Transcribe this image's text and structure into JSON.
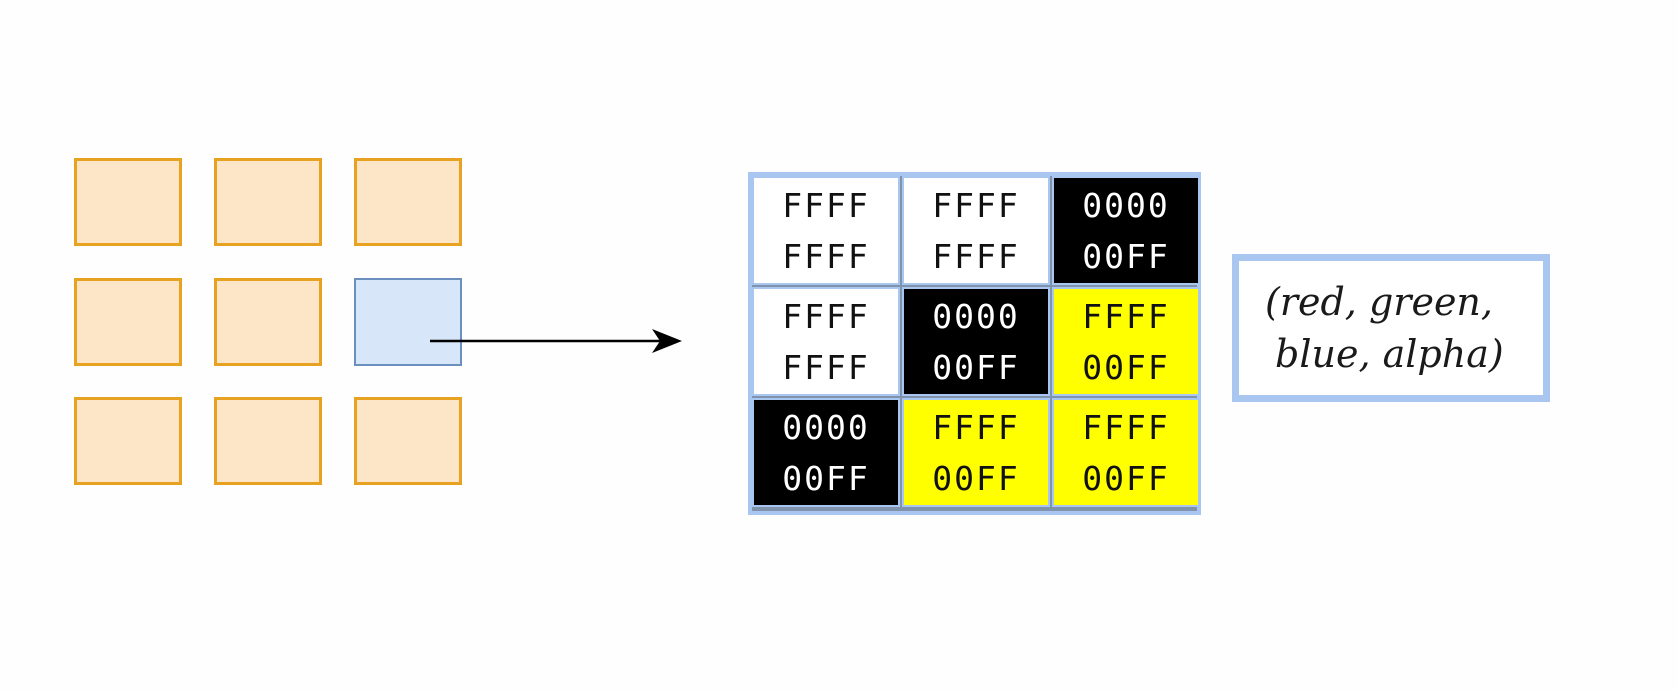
{
  "source_grid": {
    "rows": 3,
    "cols": 3,
    "selected_cell": {
      "row": 1,
      "col": 2
    },
    "cell_fill": "#fde5c8",
    "cell_border": "#e8a222",
    "selected_fill": "#d7e6f8",
    "selected_border": "#6b8fbf"
  },
  "pixel_table": {
    "cells": [
      [
        {
          "line1": "FFFF",
          "line2": "FFFF",
          "color": "white"
        },
        {
          "line1": "FFFF",
          "line2": "FFFF",
          "color": "white"
        },
        {
          "line1": "0000",
          "line2": "00FF",
          "color": "black"
        }
      ],
      [
        {
          "line1": "FFFF",
          "line2": "FFFF",
          "color": "white"
        },
        {
          "line1": "0000",
          "line2": "00FF",
          "color": "black"
        },
        {
          "line1": "FFFF",
          "line2": "00FF",
          "color": "yellow"
        }
      ],
      [
        {
          "line1": "0000",
          "line2": "00FF",
          "color": "black"
        },
        {
          "line1": "FFFF",
          "line2": "00FF",
          "color": "yellow"
        },
        {
          "line1": "FFFF",
          "line2": "00FF",
          "color": "yellow"
        }
      ]
    ]
  },
  "legend": {
    "line1": "(red, green,",
    "line2": "blue, alpha)"
  },
  "colors": {
    "white": "#ffffff",
    "black": "#000000",
    "yellow": "#ffff00",
    "table_border": "#a8c6ef"
  }
}
